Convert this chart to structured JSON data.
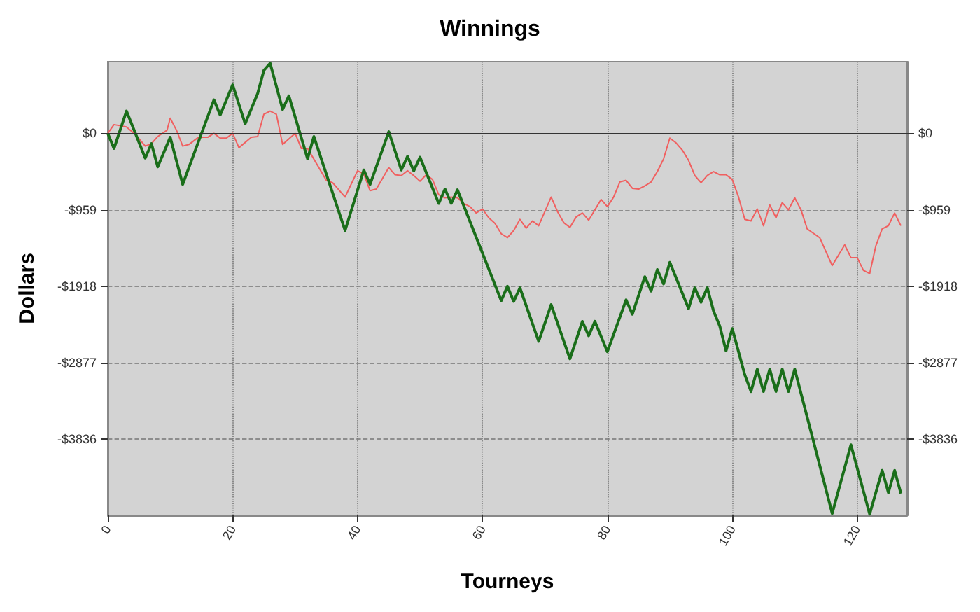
{
  "chart_data": {
    "type": "line",
    "title": "Winnings",
    "xlabel": "Tourneys",
    "ylabel": "Dollars",
    "xlim": [
      0,
      128
    ],
    "xticks": [
      0,
      20,
      40,
      60,
      80,
      100,
      120
    ],
    "ylim": [
      -4795,
      900
    ],
    "yticks": [
      {
        "value": 0,
        "label": "$0"
      },
      {
        "value": -959,
        "label": "-$959"
      },
      {
        "value": -1918,
        "label": "-$1918"
      },
      {
        "value": -2877,
        "label": "-$2877"
      },
      {
        "value": -3836,
        "label": "-$3836"
      }
    ],
    "y2lim": [
      -4795,
      900
    ],
    "y2ticks": [
      {
        "value": 0,
        "label": "$0"
      },
      {
        "value": -959,
        "label": "-$959"
      },
      {
        "value": -1918,
        "label": "-$1918"
      },
      {
        "value": -2877,
        "label": "-$2877"
      },
      {
        "value": -3836,
        "label": "-$3836"
      }
    ],
    "grid": true,
    "marker": "none",
    "line_style": "solid",
    "ref_lines": [
      {
        "axis": "y",
        "value": 0,
        "color": "#333333",
        "line_style": "solid"
      }
    ],
    "series": [
      {
        "color": "#f06060",
        "x": [
          0,
          1,
          3,
          4.5,
          6,
          7,
          8,
          9.5,
          10,
          11,
          12,
          13,
          14.5,
          16,
          17,
          18,
          19,
          20,
          21,
          23,
          24,
          25,
          26,
          27,
          28,
          30,
          31,
          32,
          35,
          36,
          38,
          40,
          41,
          42,
          43,
          45,
          46,
          47,
          48,
          49,
          50,
          51,
          52,
          53,
          54,
          55,
          56,
          57,
          58,
          59,
          60,
          61,
          62,
          63,
          64,
          65,
          66,
          67,
          68,
          69,
          71,
          72,
          73,
          74,
          75,
          76,
          77,
          79,
          80,
          81,
          82,
          83,
          84,
          85,
          86,
          87,
          88,
          89,
          90,
          91,
          92,
          93,
          94,
          95,
          96,
          97,
          98,
          99,
          100,
          101,
          102,
          103,
          104,
          105,
          106,
          107,
          108,
          109,
          110,
          111,
          112,
          114,
          116,
          118,
          119,
          120,
          121,
          122,
          123,
          124,
          125,
          126,
          127
        ],
        "values": [
          0,
          110,
          80,
          -20,
          -160,
          -130,
          -40,
          40,
          190,
          40,
          -160,
          -140,
          -50,
          -50,
          0,
          -60,
          -60,
          0,
          -180,
          -50,
          -40,
          240,
          280,
          240,
          -140,
          0,
          -190,
          -190,
          -590,
          -620,
          -800,
          -470,
          -510,
          -720,
          -700,
          -430,
          -520,
          -530,
          -470,
          -530,
          -600,
          -520,
          -580,
          -770,
          -810,
          -800,
          -810,
          -880,
          -920,
          -1000,
          -950,
          -1060,
          -1130,
          -1260,
          -1310,
          -1220,
          -1080,
          -1190,
          -1100,
          -1160,
          -800,
          -980,
          -1120,
          -1180,
          -1050,
          -1000,
          -1090,
          -830,
          -920,
          -800,
          -610,
          -590,
          -690,
          -700,
          -660,
          -610,
          -480,
          -320,
          -60,
          -120,
          -210,
          -340,
          -530,
          -620,
          -530,
          -480,
          -520,
          -520,
          -580,
          -800,
          -1080,
          -1100,
          -950,
          -1160,
          -900,
          -1060,
          -870,
          -960,
          -810,
          -960,
          -1200,
          -1310,
          -1660,
          -1400,
          -1560,
          -1560,
          -1720,
          -1760,
          -1410,
          -1200,
          -1160,
          -1000,
          -1160
        ]
      },
      {
        "color": "#1a6e1a",
        "x": [
          0,
          1,
          3,
          6,
          7,
          8,
          10,
          12,
          17,
          18,
          20,
          22,
          24,
          25,
          26,
          28,
          29,
          32,
          33,
          38,
          41,
          42,
          45,
          47,
          48,
          49,
          50,
          53,
          54,
          55,
          56,
          63,
          64,
          65,
          66,
          69,
          71,
          74,
          76,
          77,
          78,
          80,
          83,
          84,
          86,
          87,
          88,
          89,
          90,
          93,
          94,
          95,
          96,
          97,
          98,
          99,
          100,
          102,
          103,
          104,
          105,
          106,
          107,
          108,
          109,
          110,
          116,
          119,
          122,
          124,
          125,
          126,
          127
        ],
        "values": [
          0,
          -190,
          280,
          -310,
          -130,
          -420,
          -50,
          -640,
          420,
          230,
          610,
          120,
          500,
          790,
          880,
          300,
          470,
          -320,
          -40,
          -1220,
          -460,
          -640,
          20,
          -460,
          -290,
          -470,
          -300,
          -880,
          -700,
          -880,
          -710,
          -2100,
          -1920,
          -2110,
          -1940,
          -2610,
          -2150,
          -2830,
          -2360,
          -2540,
          -2360,
          -2740,
          -2090,
          -2270,
          -1800,
          -1980,
          -1710,
          -1890,
          -1620,
          -2200,
          -1940,
          -2120,
          -1940,
          -2230,
          -2420,
          -2730,
          -2450,
          -3030,
          -3240,
          -2960,
          -3240,
          -2960,
          -3240,
          -2960,
          -3240,
          -2960,
          -4770,
          -3910,
          -4780,
          -4230,
          -4510,
          -4230,
          -4520
        ]
      }
    ]
  }
}
